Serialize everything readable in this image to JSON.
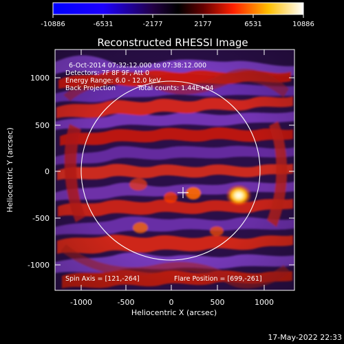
{
  "image": {
    "title": "Reconstructed RHESSI Image",
    "x_axis_label": "Heliocentric X (arcsec)",
    "y_axis_label": "Heliocentric Y (arcsec)",
    "x_ticks": [
      "-1000",
      "-500",
      "0",
      "500",
      "1000"
    ],
    "y_ticks": [
      "1000",
      "500",
      "0",
      "-500",
      "-1000"
    ],
    "timestamp": "17-May-2022 22:33"
  },
  "colorbar": {
    "tick_labels": [
      "-10886",
      "-6531",
      "-2177",
      "2177",
      "6531",
      "10886"
    ],
    "colors": [
      "#0000ff",
      "#000000",
      "#ff0000",
      "#ffff00",
      "#ffffff"
    ]
  },
  "overlay": {
    "line1": "6-Oct-2014 07:32:12.000 to 07:38:12.000",
    "line2": "Detectors: 7F 8F 9F, Att 0",
    "line3": "Energy Range: 6.0 - 12.0 keV",
    "line4a": "Back Projection",
    "line4b": "Total counts: 1.44E+04",
    "spin_axis": "Spin Axis = [121,-264]",
    "flare_position": "Flare Position = [699,-261]"
  }
}
